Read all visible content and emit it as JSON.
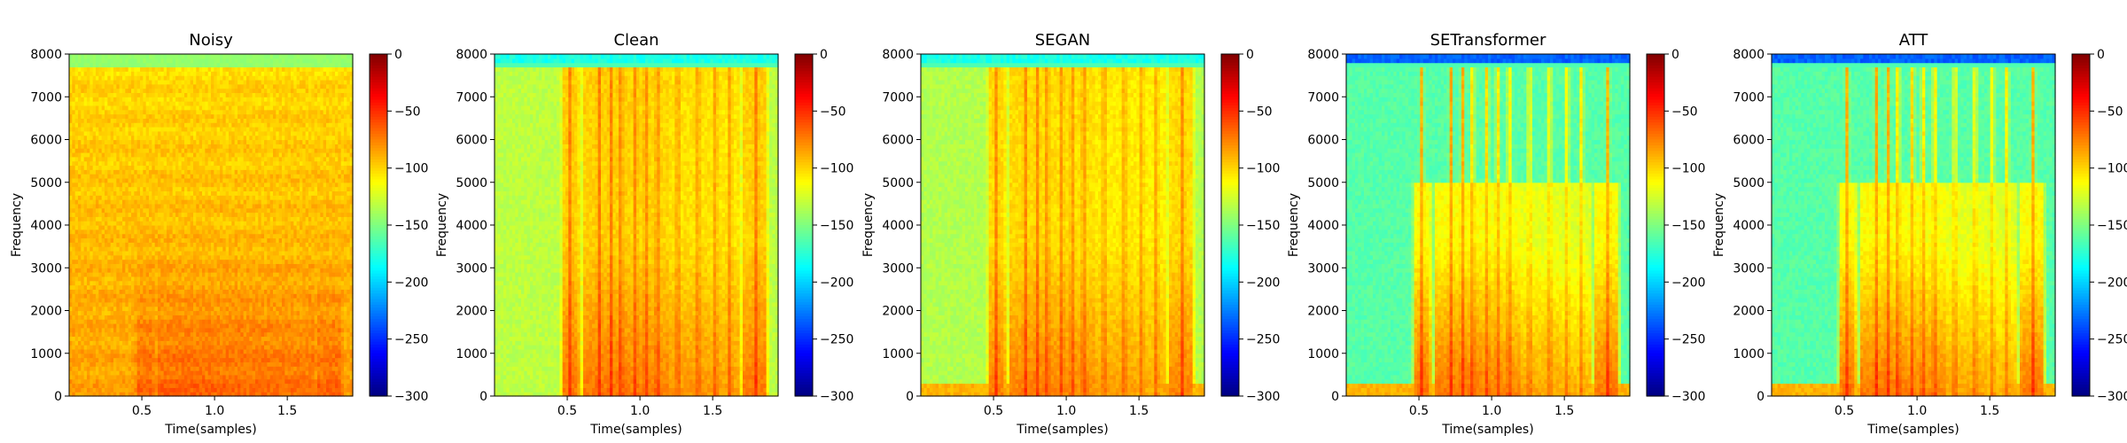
{
  "chart_data": {
    "type": "heatmap",
    "colormap": "jet",
    "color_range": [
      -300,
      0
    ],
    "colorbar_ticks": [
      "0",
      "−50",
      "−100",
      "−150",
      "−200",
      "−250",
      "−300"
    ],
    "x_range": [
      0,
      1.95
    ],
    "y_range": [
      0,
      8000
    ],
    "x_ticks": [
      "0.5",
      "1.0",
      "1.5"
    ],
    "y_ticks": [
      "0",
      "1000",
      "2000",
      "3000",
      "4000",
      "5000",
      "6000",
      "7000",
      "8000"
    ],
    "xlabel": "Time(samples)",
    "ylabel": "Frequency",
    "panels": [
      {
        "title": "Noisy",
        "variant": "noisy"
      },
      {
        "title": "Clean",
        "variant": "clean"
      },
      {
        "title": "SEGAN",
        "variant": "segan"
      },
      {
        "title": "SETransformer",
        "variant": "setransformer"
      },
      {
        "title": "ATT",
        "variant": "att"
      }
    ]
  }
}
